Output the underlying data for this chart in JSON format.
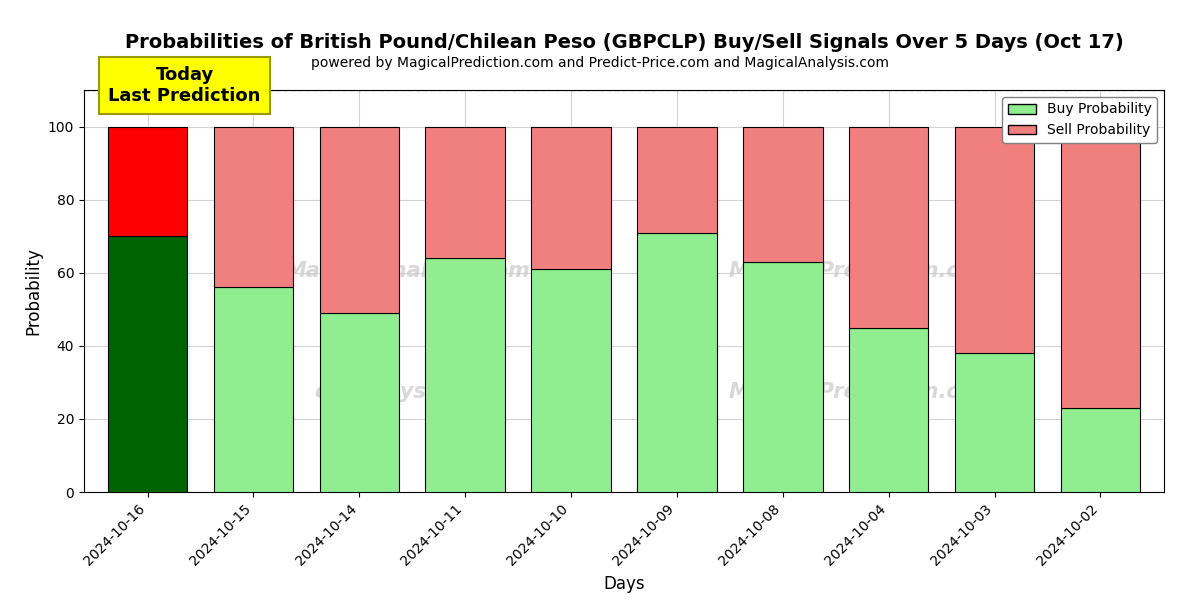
{
  "title": "Probabilities of British Pound/Chilean Peso (GBPCLP) Buy/Sell Signals Over 5 Days (Oct 17)",
  "subtitle": "powered by MagicalPrediction.com and Predict-Price.com and MagicalAnalysis.com",
  "xlabel": "Days",
  "ylabel": "Probability",
  "categories": [
    "2024-10-16",
    "2024-10-15",
    "2024-10-14",
    "2024-10-11",
    "2024-10-10",
    "2024-10-09",
    "2024-10-08",
    "2024-10-04",
    "2024-10-03",
    "2024-10-02"
  ],
  "buy_values": [
    70,
    56,
    49,
    64,
    61,
    71,
    63,
    45,
    38,
    23
  ],
  "sell_values": [
    30,
    44,
    51,
    36,
    39,
    29,
    37,
    55,
    62,
    77
  ],
  "today_bar_buy_color": "#006400",
  "today_bar_sell_color": "#FF0000",
  "other_bar_buy_color": "#90EE90",
  "other_bar_sell_color": "#F08080",
  "bar_edge_color": "#000000",
  "today_annotation_bg": "#FFFF00",
  "today_annotation_text": "Today\nLast Prediction",
  "ylim": [
    0,
    110
  ],
  "yticks": [
    0,
    20,
    40,
    60,
    80,
    100
  ],
  "dashed_line_y": 110,
  "legend_buy_label": "Buy Probability",
  "legend_sell_label": "Sell Probability",
  "title_fontsize": 14,
  "subtitle_fontsize": 10,
  "axis_label_fontsize": 12,
  "tick_fontsize": 10,
  "bar_width": 0.75
}
